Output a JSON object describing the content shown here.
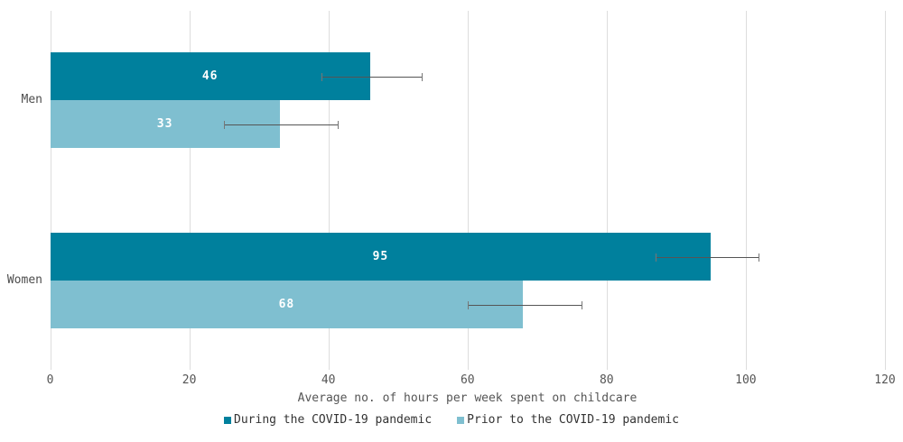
{
  "chart_data": {
    "type": "bar",
    "orientation": "horizontal",
    "categories": [
      "Men",
      "Women"
    ],
    "series": [
      {
        "name": "During the COVID-19 pandemic",
        "color": "#00809d",
        "values": [
          46,
          95
        ],
        "error_low": [
          39,
          87
        ],
        "error_high": [
          53.5,
          102
        ]
      },
      {
        "name": "Prior to the COVID-19 pandemic",
        "color": "#7fbfd0",
        "values": [
          33,
          68
        ],
        "error_low": [
          25,
          60
        ],
        "error_high": [
          41.5,
          76.5
        ]
      }
    ],
    "title": "",
    "xlabel": "Average no. of hours per week spent on childcare",
    "ylabel": "",
    "xlim": [
      0,
      120
    ],
    "xticks": [
      "0",
      "20",
      "40",
      "60",
      "80",
      "100",
      "120"
    ],
    "xtick_values": [
      0,
      20,
      40,
      60,
      80,
      100,
      120
    ],
    "grid": "vertical",
    "legend_position": "bottom",
    "colors": {
      "bar_value_label": "#ffffff",
      "gridline": "#dddddd",
      "error_bar": "#555555",
      "axis_text": "#555555",
      "category_text": "#4d4d4d",
      "legend_text": "#333333",
      "background": "#ffffff"
    }
  }
}
